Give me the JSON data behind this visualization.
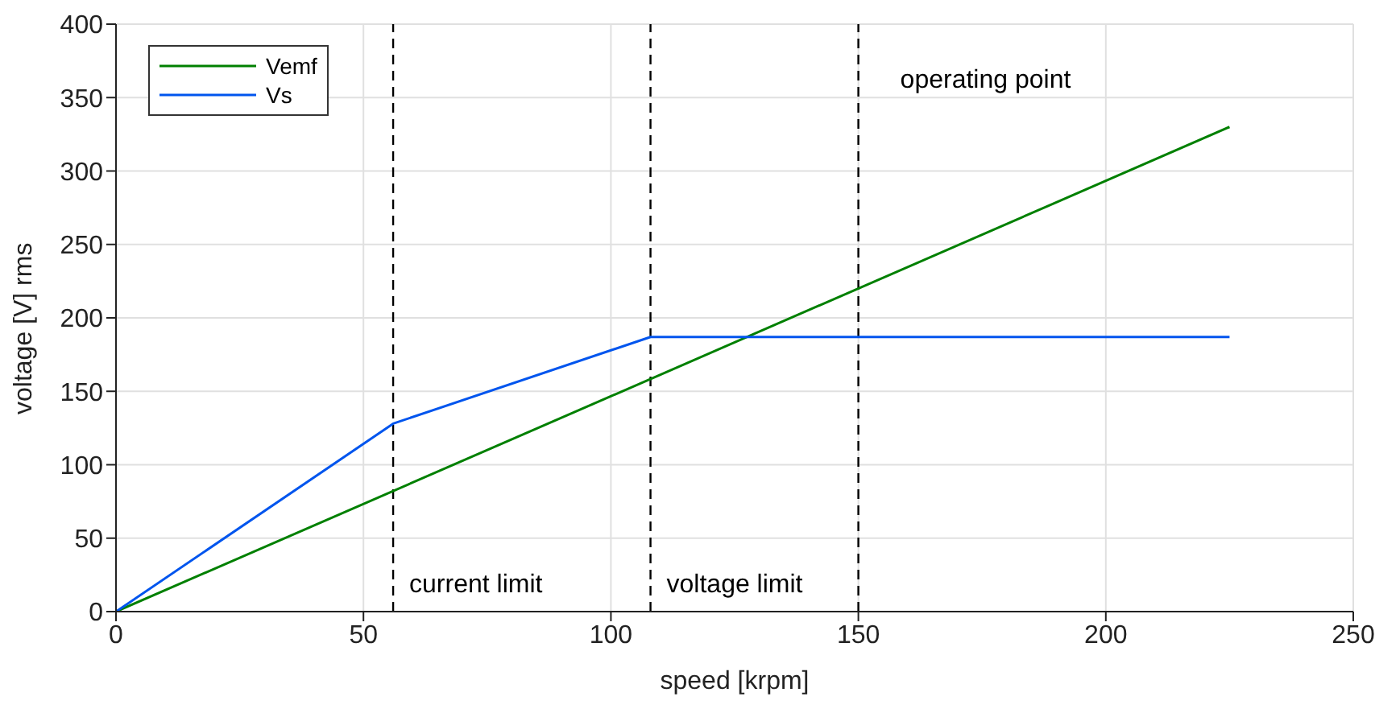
{
  "chart_data": {
    "type": "line",
    "xlabel": "speed [krpm]",
    "ylabel": "voltage [V] rms",
    "xlim": [
      0,
      250
    ],
    "xticks": [
      0,
      50,
      100,
      150,
      200,
      250
    ],
    "ylim": [
      0,
      400
    ],
    "yticks": [
      0,
      50,
      100,
      150,
      200,
      250,
      300,
      350,
      400
    ],
    "series": [
      {
        "name": "Vemf",
        "color": "#008000",
        "x": [
          0,
          225
        ],
        "values": [
          0,
          330
        ]
      },
      {
        "name": "Vs",
        "color": "#0055ee",
        "x": [
          0,
          56,
          108,
          225
        ],
        "values": [
          0,
          128,
          187,
          187
        ]
      }
    ],
    "ref_lines": [
      {
        "axis": "x",
        "value": 56,
        "label": "current limit",
        "color": "#000000",
        "line_style": "dashed"
      },
      {
        "axis": "x",
        "value": 108,
        "label": "voltage limit",
        "color": "#000000",
        "line_style": "dashed"
      },
      {
        "axis": "x",
        "value": 150,
        "label": "operating point",
        "color": "#000000",
        "line_style": "dashed"
      }
    ],
    "grid": true,
    "legend": "top left",
    "marker": "none",
    "line_style": "solid"
  }
}
